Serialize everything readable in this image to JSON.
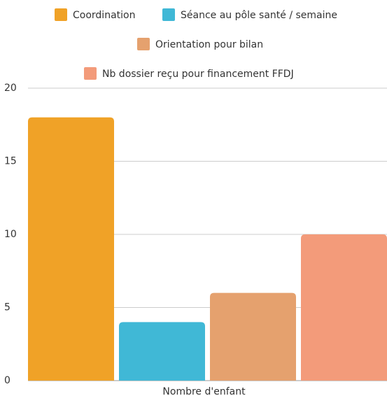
{
  "chart_data": {
    "type": "bar",
    "categories": [
      "Nombre d'enfant"
    ],
    "series": [
      {
        "name": "Coordination",
        "color": "#F0A227",
        "values": [
          18
        ]
      },
      {
        "name": "Séance au pôle santé / semaine",
        "color": "#40B8D6",
        "values": [
          4
        ]
      },
      {
        "name": "Orientation pour bilan",
        "color": "#E5A16E",
        "values": [
          6
        ]
      },
      {
        "name": "Nb dossier reçu pour financement FFDJ",
        "color": "#F39B7A",
        "values": [
          10
        ]
      }
    ],
    "ylim": [
      0,
      20
    ],
    "yticks": [
      0,
      5,
      10,
      15,
      20
    ],
    "grid": true
  }
}
